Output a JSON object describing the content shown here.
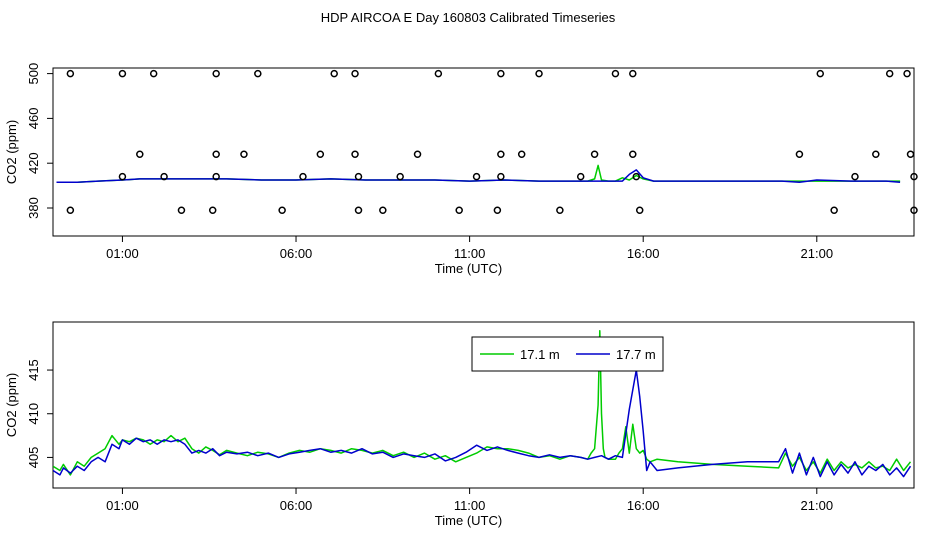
{
  "title": "HDP AIRCOA E  Day 160803  Calibrated Timeseries",
  "colors": {
    "green": "#00cc00",
    "blue": "#0000cc",
    "axis": "#000000"
  },
  "chart_data": [
    {
      "type": "line",
      "panel": "top",
      "xlabel": "Time (UTC)",
      "ylabel": "CO2 (ppm)",
      "xlim": [
        -1.0,
        23.8
      ],
      "ylim": [
        355,
        505
      ],
      "x_ticks": [
        {
          "value": 1,
          "label": "01:00"
        },
        {
          "value": 6,
          "label": "06:00"
        },
        {
          "value": 11,
          "label": "11:00"
        },
        {
          "value": 16,
          "label": "16:00"
        },
        {
          "value": 21,
          "label": "21:00"
        }
      ],
      "y_ticks": [
        {
          "value": 380,
          "label": "380"
        },
        {
          "value": 420,
          "label": "420"
        },
        {
          "value": 460,
          "label": "460"
        },
        {
          "value": 500,
          "label": "500"
        }
      ],
      "series": [
        {
          "color": "#00cc00",
          "x": [
            -0.9,
            -0.3,
            0.3,
            1.0,
            1.5,
            2.0,
            3.0,
            4.0,
            5.0,
            6.0,
            7.0,
            8.0,
            9.0,
            10.0,
            11.0,
            12.0,
            13.0,
            14.0,
            14.4,
            14.6,
            14.7,
            14.8,
            15.0,
            15.2,
            15.4,
            15.6,
            15.8,
            16.0,
            16.3,
            17.0,
            18.0,
            19.0,
            20.0,
            20.5,
            21.0,
            22.0,
            23.0,
            23.4
          ],
          "values": [
            403,
            403,
            404,
            405,
            406,
            406,
            406,
            406,
            405,
            405,
            406,
            405,
            405,
            405,
            404,
            405,
            404,
            404,
            404,
            406,
            418,
            405,
            404,
            404,
            407,
            405,
            409,
            406,
            404,
            404,
            404,
            404,
            404,
            404,
            404,
            404,
            404,
            404
          ]
        },
        {
          "color": "#0000cc",
          "x": [
            -0.9,
            -0.3,
            0.3,
            1.0,
            1.5,
            2.0,
            3.0,
            4.0,
            5.0,
            6.0,
            7.0,
            8.0,
            9.0,
            10.0,
            11.0,
            12.0,
            13.0,
            14.0,
            14.4,
            14.6,
            14.7,
            14.8,
            15.0,
            15.2,
            15.4,
            15.6,
            15.8,
            16.0,
            16.3,
            17.0,
            18.0,
            19.0,
            20.0,
            20.5,
            21.0,
            22.0,
            23.0,
            23.4
          ],
          "values": [
            403,
            403,
            404,
            405,
            406,
            406,
            406,
            406,
            405,
            405,
            406,
            405,
            405,
            405,
            404,
            405,
            404,
            404,
            404,
            404,
            404,
            404,
            404,
            404,
            404,
            410,
            414,
            407,
            404,
            404,
            404,
            404,
            404,
            403,
            405,
            404,
            404,
            403
          ]
        }
      ],
      "scatter": {
        "x": [
          -0.5,
          1.0,
          1.9,
          3.7,
          4.9,
          7.1,
          7.7,
          10.1,
          11.9,
          13.0,
          15.2,
          15.7,
          21.1,
          23.1,
          23.6,
          1.5,
          3.7,
          4.5,
          6.7,
          7.7,
          9.5,
          11.9,
          12.5,
          14.6,
          15.7,
          20.5,
          22.7,
          23.7,
          1.0,
          2.2,
          3.7,
          6.2,
          7.8,
          9.0,
          11.2,
          11.9,
          14.2,
          15.8,
          22.1,
          23.8,
          -0.5,
          2.7,
          3.6,
          5.6,
          7.8,
          8.5,
          10.7,
          11.8,
          13.6,
          15.9,
          21.5,
          23.8
        ],
        "values": [
          500,
          500,
          500,
          500,
          500,
          500,
          500,
          500,
          500,
          500,
          500,
          500,
          500,
          500,
          500,
          428,
          428,
          428,
          428,
          428,
          428,
          428,
          428,
          428,
          428,
          428,
          428,
          428,
          408,
          408,
          408,
          408,
          408,
          408,
          408,
          408,
          408,
          408,
          408,
          408,
          378,
          378,
          378,
          378,
          378,
          378,
          378,
          378,
          378,
          378,
          378,
          378
        ]
      }
    },
    {
      "type": "line",
      "panel": "bottom",
      "xlabel": "Time (UTC)",
      "ylabel": "CO2 (ppm)",
      "xlim": [
        -1.0,
        23.8
      ],
      "ylim": [
        401.5,
        420.5
      ],
      "x_ticks": [
        {
          "value": 1,
          "label": "01:00"
        },
        {
          "value": 6,
          "label": "06:00"
        },
        {
          "value": 11,
          "label": "11:00"
        },
        {
          "value": 16,
          "label": "16:00"
        },
        {
          "value": 21,
          "label": "21:00"
        }
      ],
      "y_ticks": [
        {
          "value": 405,
          "label": "405"
        },
        {
          "value": 410,
          "label": "410"
        },
        {
          "value": 415,
          "label": "415"
        }
      ],
      "legend": "top-center",
      "series": [
        {
          "name": "17.1 m",
          "color": "#00cc00",
          "x": [
            -1.0,
            -0.8,
            -0.7,
            -0.5,
            -0.3,
            -0.1,
            0.1,
            0.3,
            0.5,
            0.7,
            0.9,
            1.0,
            1.2,
            1.4,
            1.6,
            1.8,
            2.0,
            2.2,
            2.4,
            2.6,
            2.8,
            3.0,
            3.2,
            3.4,
            3.6,
            3.8,
            4.0,
            4.3,
            4.6,
            4.9,
            5.2,
            5.5,
            5.8,
            6.1,
            6.4,
            6.7,
            7.0,
            7.3,
            7.6,
            7.9,
            8.2,
            8.5,
            8.8,
            9.1,
            9.4,
            9.7,
            10.0,
            10.3,
            10.6,
            10.9,
            11.2,
            11.5,
            11.8,
            12.1,
            12.4,
            12.7,
            13.0,
            13.3,
            13.6,
            13.9,
            14.2,
            14.4,
            14.5,
            14.6,
            14.7,
            14.75,
            14.8,
            14.85,
            14.9,
            15.0,
            15.2,
            15.3,
            15.4,
            15.5,
            15.6,
            15.7,
            15.8,
            15.9,
            16.0,
            16.1,
            16.2,
            16.4,
            17.0,
            18.0,
            19.0,
            19.9,
            20.1,
            20.3,
            20.5,
            20.7,
            20.9,
            21.1,
            21.3,
            21.5,
            21.7,
            21.9,
            22.1,
            22.3,
            22.5,
            22.7,
            22.9,
            23.1,
            23.3,
            23.5,
            23.7
          ],
          "values": [
            404.0,
            403.5,
            404.2,
            403.0,
            404.5,
            404.0,
            405.0,
            405.5,
            406.0,
            407.5,
            406.5,
            407.0,
            406.8,
            407.2,
            407.0,
            406.5,
            407.0,
            406.8,
            407.5,
            406.8,
            407.2,
            406.0,
            405.5,
            406.2,
            405.8,
            405.3,
            405.8,
            405.5,
            405.2,
            405.6,
            405.4,
            405.0,
            405.5,
            405.8,
            405.6,
            406.0,
            405.8,
            405.5,
            406.0,
            405.8,
            405.5,
            405.8,
            405.2,
            405.6,
            405.0,
            405.5,
            404.8,
            405.2,
            404.5,
            405.0,
            405.5,
            406.2,
            406.0,
            406.0,
            405.8,
            405.5,
            405.0,
            405.2,
            404.8,
            405.2,
            405.0,
            404.8,
            405.5,
            406.0,
            411.0,
            419.5,
            410.0,
            406.0,
            405.0,
            404.8,
            404.8,
            405.5,
            406.0,
            408.5,
            405.5,
            408.8,
            406.0,
            405.5,
            405.8,
            404.8,
            404.5,
            404.8,
            404.5,
            404.2,
            404.0,
            403.8,
            405.5,
            404.0,
            405.0,
            403.5,
            404.5,
            403.2,
            404.8,
            403.5,
            404.5,
            403.8,
            404.2,
            403.8,
            404.5,
            403.8,
            404.0,
            403.5,
            404.8,
            403.5,
            404.5
          ]
        },
        {
          "name": "17.7 m",
          "color": "#0000cc",
          "x": [
            -1.0,
            -0.8,
            -0.7,
            -0.5,
            -0.3,
            -0.1,
            0.1,
            0.3,
            0.5,
            0.7,
            0.9,
            1.0,
            1.2,
            1.4,
            1.6,
            1.8,
            2.0,
            2.2,
            2.4,
            2.6,
            2.8,
            3.0,
            3.2,
            3.4,
            3.6,
            3.8,
            4.0,
            4.3,
            4.6,
            4.9,
            5.2,
            5.5,
            5.8,
            6.1,
            6.4,
            6.7,
            7.0,
            7.3,
            7.6,
            7.9,
            8.2,
            8.5,
            8.8,
            9.1,
            9.4,
            9.7,
            10.0,
            10.3,
            10.6,
            10.9,
            11.2,
            11.5,
            11.8,
            12.1,
            12.4,
            12.7,
            13.0,
            13.3,
            13.6,
            13.9,
            14.2,
            14.4,
            14.6,
            14.8,
            15.0,
            15.2,
            15.4,
            15.6,
            15.8,
            15.9,
            16.0,
            16.1,
            16.2,
            16.4,
            17.0,
            18.0,
            19.0,
            19.9,
            20.1,
            20.3,
            20.5,
            20.7,
            20.9,
            21.1,
            21.3,
            21.5,
            21.7,
            21.9,
            22.1,
            22.3,
            22.5,
            22.7,
            22.9,
            23.1,
            23.3,
            23.5,
            23.7
          ],
          "values": [
            403.5,
            403.0,
            403.8,
            403.2,
            404.0,
            403.5,
            404.5,
            405.0,
            404.5,
            406.5,
            406.0,
            407.0,
            406.5,
            407.2,
            406.8,
            407.0,
            406.5,
            407.0,
            406.8,
            407.0,
            406.5,
            405.5,
            405.8,
            405.5,
            406.0,
            405.2,
            405.6,
            405.4,
            405.6,
            405.2,
            405.5,
            405.0,
            405.4,
            405.6,
            405.8,
            406.0,
            405.6,
            405.8,
            405.5,
            406.0,
            405.4,
            405.6,
            405.0,
            405.4,
            405.2,
            405.0,
            405.4,
            404.6,
            405.0,
            405.6,
            406.4,
            405.8,
            406.2,
            405.8,
            405.5,
            405.2,
            405.0,
            405.3,
            405.0,
            405.2,
            405.0,
            404.8,
            405.0,
            405.2,
            404.8,
            405.2,
            405.0,
            410.5,
            415.0,
            412.0,
            408.0,
            403.5,
            404.5,
            403.5,
            403.8,
            404.2,
            404.5,
            404.5,
            406.0,
            403.2,
            405.5,
            403.0,
            405.0,
            402.8,
            404.5,
            403.0,
            404.2,
            403.2,
            404.5,
            403.0,
            404.0,
            403.5,
            404.2,
            403.0,
            403.8,
            402.8,
            404.0
          ]
        }
      ]
    }
  ]
}
